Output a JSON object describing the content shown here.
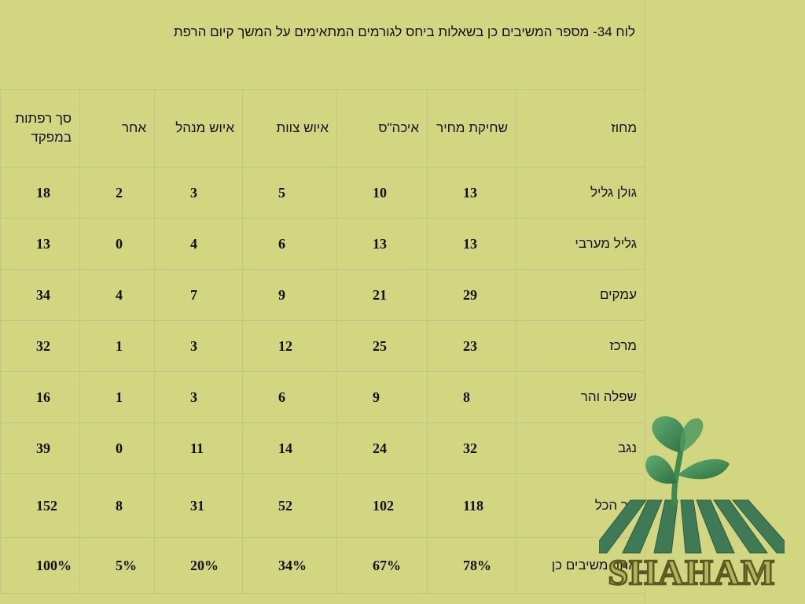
{
  "title": "לוח 34- מספר המשיבים כן בשאלות ביחס לגורמים המתאימים על המשך קיום הרפת",
  "table": {
    "headers": [
      "מחוז",
      "שחיקת מחיר",
      "איכה\"ס",
      "איוש צוות",
      "איוש מנהל",
      "אחר",
      "סך רפתות במפקד"
    ],
    "rows": [
      {
        "region": "גולן גליל",
        "values": [
          "13",
          "10",
          "5",
          "3",
          "2",
          "18"
        ]
      },
      {
        "region": "גליל מערבי",
        "values": [
          "13",
          "13",
          "6",
          "4",
          "0",
          "13"
        ]
      },
      {
        "region": "עמקים",
        "values": [
          "29",
          "21",
          "9",
          "7",
          "4",
          "34"
        ]
      },
      {
        "region": "מרכז",
        "values": [
          "23",
          "25",
          "12",
          "3",
          "1",
          "32"
        ]
      },
      {
        "region": "שפלה והר",
        "values": [
          "8",
          "9",
          "6",
          "3",
          "1",
          "16"
        ]
      },
      {
        "region": "נגב",
        "values": [
          "32",
          "24",
          "14",
          "11",
          "0",
          "39"
        ]
      }
    ],
    "total": {
      "region": "סך הכל",
      "values": [
        "118",
        "102",
        "52",
        "31",
        "8",
        "152"
      ]
    },
    "percent": {
      "region": "אחוז משיבים כן",
      "values": [
        "78%",
        "67%",
        "34%",
        "20%",
        "5%",
        "100%"
      ]
    }
  },
  "logo": {
    "text": "SHAHAM",
    "icon": "sprout-logo-icon"
  },
  "colors": {
    "background": "#d3d681",
    "grid": "#c2c58a",
    "logo_green": "#3f8a52",
    "logo_text": "#6b6a2e"
  }
}
